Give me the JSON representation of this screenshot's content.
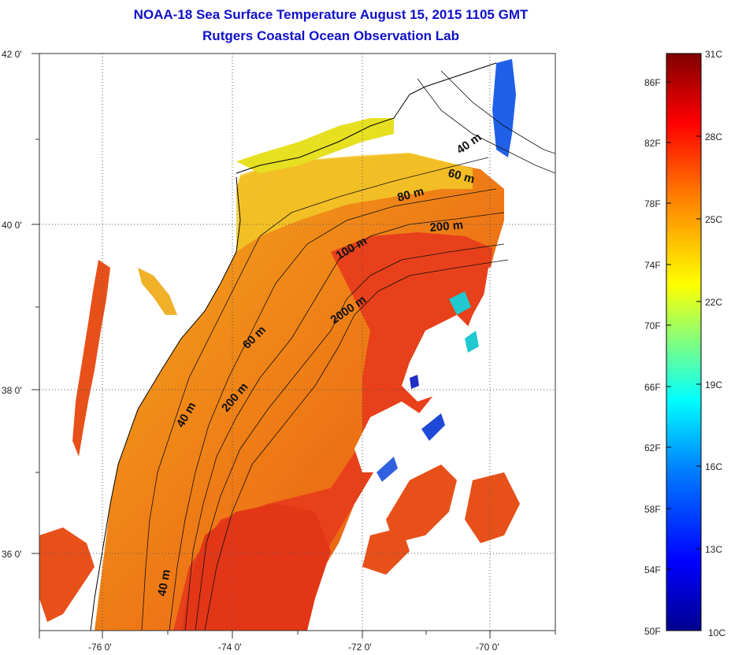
{
  "header": {
    "title": "NOAA-18 Sea Surface Temperature August 15, 2015 1105 GMT",
    "subtitle": "Rutgers Coastal Ocean Observation Lab"
  },
  "map": {
    "lat_labels": [
      "42 0'",
      "40 0'",
      "38 0'",
      "36 0'"
    ],
    "lon_labels": [
      "-76 0'",
      "-74 0'",
      "-72 0'",
      "-70 0'"
    ],
    "contour_labels": [
      "40 m",
      "60 m",
      "80 m",
      "200 m",
      "100 m",
      "2000 m",
      "60 m",
      "40 m",
      "200 m",
      "40 m"
    ],
    "colors": {
      "land": "#ffffff",
      "coast": "#000000",
      "warm": "#e8501a",
      "cold": "#1f2fc8"
    }
  },
  "colorbar": {
    "fahrenheit_labels": [
      "86F",
      "82F",
      "78F",
      "74F",
      "70F",
      "66F",
      "62F",
      "58F",
      "54F",
      "50F"
    ],
    "celsius_labels": [
      "31C",
      "28C",
      "25C",
      "22C",
      "19C",
      "16C",
      "13C",
      "10C"
    ],
    "stops": [
      "#00008f",
      "#0000ff",
      "#0080ff",
      "#00ffff",
      "#80ff80",
      "#ffff00",
      "#ff8000",
      "#ff0000",
      "#800000"
    ]
  }
}
